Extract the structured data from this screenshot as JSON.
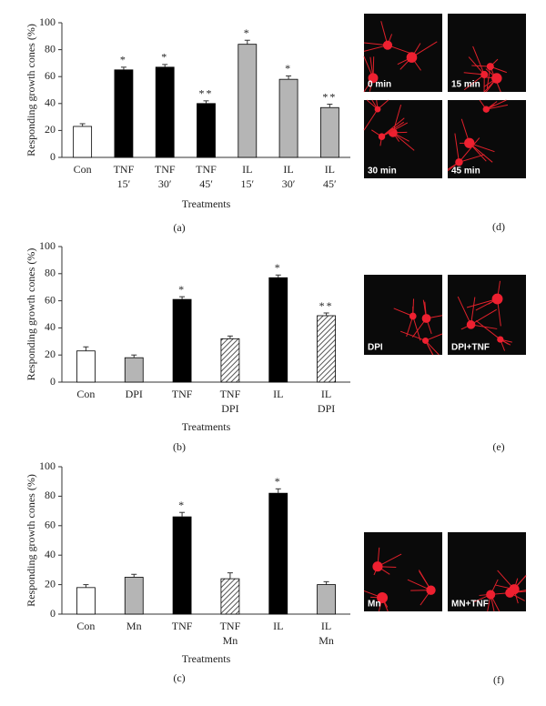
{
  "chart_data": [
    {
      "type": "bar",
      "ylabel": "Responding growth cones (%)",
      "xlabel": "Treatments",
      "categories": [
        [
          "Con"
        ],
        [
          "TNF",
          "15′"
        ],
        [
          "TNF",
          "30′"
        ],
        [
          "TNF",
          "45′"
        ],
        [
          "IL",
          "15′"
        ],
        [
          "IL",
          "30′"
        ],
        [
          "IL",
          "45′"
        ]
      ],
      "values": [
        23,
        65,
        67,
        40,
        84,
        58,
        37
      ],
      "errors": [
        2,
        2,
        2,
        2,
        3,
        2.5,
        2.5
      ],
      "fills": [
        "#ffffff",
        "#000000",
        "#000000",
        "#000000",
        "#b5b5b5",
        "#b5b5b5",
        "#b5b5b5"
      ],
      "significance": [
        null,
        "*",
        "*",
        "**",
        "*",
        "*",
        "**"
      ],
      "ylim": [
        0,
        100
      ],
      "yticks": [
        0,
        20,
        40,
        60,
        80,
        100
      ]
    },
    {
      "type": "bar",
      "ylabel": "Responding growth cones (%)",
      "xlabel": "Treatments",
      "categories": [
        [
          "Con"
        ],
        [
          "DPI"
        ],
        [
          "TNF"
        ],
        [
          "TNF",
          "DPI"
        ],
        [
          "IL"
        ],
        [
          "IL",
          "DPI"
        ]
      ],
      "values": [
        23,
        18,
        61,
        32,
        77,
        49
      ],
      "errors": [
        3,
        2,
        2,
        2,
        2,
        2
      ],
      "fills": [
        "#ffffff",
        "#b5b5b5",
        "#000000",
        "hatch",
        "#000000",
        "hatch"
      ],
      "significance": [
        null,
        null,
        "*",
        null,
        "*",
        "**"
      ],
      "ylim": [
        0,
        100
      ],
      "yticks": [
        0,
        20,
        40,
        60,
        80,
        100
      ]
    },
    {
      "type": "bar",
      "ylabel": "Responding growth cones (%)",
      "xlabel": "Treatments",
      "categories": [
        [
          "Con"
        ],
        [
          "Mn"
        ],
        [
          "TNF"
        ],
        [
          "TNF",
          "Mn"
        ],
        [
          "IL"
        ],
        [
          "IL",
          "Mn"
        ]
      ],
      "values": [
        18,
        25,
        66,
        24,
        82,
        20
      ],
      "errors": [
        2,
        2,
        3,
        4,
        3,
        2
      ],
      "fills": [
        "#ffffff",
        "#b5b5b5",
        "#000000",
        "hatch",
        "#000000",
        "#b5b5b5"
      ],
      "significance": [
        null,
        null,
        "*",
        null,
        "*",
        null
      ],
      "ylim": [
        0,
        100
      ],
      "yticks": [
        0,
        20,
        40,
        60,
        80,
        100
      ]
    }
  ],
  "panel_labels": [
    "(a)",
    "(b)",
    "(c)",
    "(d)",
    "(e)",
    "(f)"
  ],
  "image_labels": {
    "d": [
      "0 min",
      "15 min",
      "30 min",
      "45 min"
    ],
    "e": [
      "DPI",
      "DPI+TNF"
    ],
    "f": [
      "Mn",
      "MN+TNF"
    ]
  }
}
